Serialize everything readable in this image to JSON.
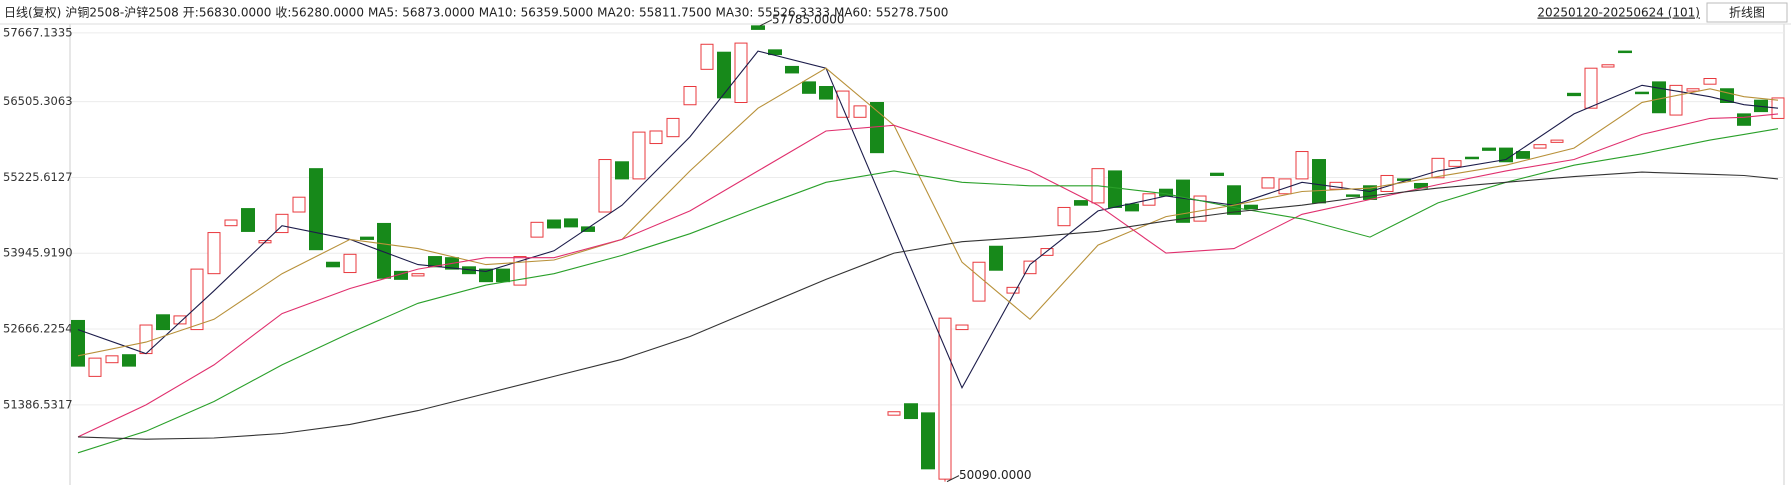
{
  "chart_data": {
    "type": "candlestick",
    "title": "日线(复权)",
    "subtitle": "沪铜2508-沪锌2508",
    "header_items": [
      {
        "label": "开:",
        "text": "56830.0000",
        "color": "#1a9fe0"
      },
      {
        "label": "收:",
        "text": "56280.0000",
        "color": "#1a9fe0"
      }
    ],
    "range": "20250120-20250624 (101)",
    "button": "折线图",
    "up_color": "#e8383d",
    "down_color": "#17891a",
    "ylim": [
      50050,
      57850
    ],
    "yticks": [
      {
        "value": 57667.1335,
        "label": "57667.1335"
      },
      {
        "value": 56505.3063,
        "label": "56505.3063"
      },
      {
        "value": 55225.6127,
        "label": "55225.6127"
      },
      {
        "value": 53945.919,
        "label": "53945.9190"
      },
      {
        "value": 52666.2254,
        "label": "52666.2254"
      },
      {
        "value": 51386.5317,
        "label": "51386.5317"
      }
    ],
    "grid": true,
    "open": [
      52811,
      51867,
      52098,
      52233,
      52252,
      52907,
      52753,
      52657,
      53601,
      54411,
      54700,
      54122,
      54295,
      54642,
      55374,
      53794,
      53620,
      54218,
      54449,
      53640,
      53563,
      53890,
      53871,
      53717,
      53678,
      53678,
      53408,
      54218,
      54507,
      54526,
      54391,
      54642,
      55490,
      55201,
      55798,
      55914,
      56453,
      57051,
      57340,
      56491,
      57785,
      57380,
      57100,
      56839,
      56761,
      56241,
      56241,
      56491,
      51212,
      51405,
      51251,
      50132,
      52657,
      53138,
      54064,
      53273,
      53601,
      53910,
      54411,
      54835,
      54796,
      55336,
      54777,
      54757,
      55027,
      55181,
      54488,
      55297,
      55085,
      54757,
      55047,
      54950,
      55201,
      55528,
      55027,
      54931,
      55085,
      54989,
      55201,
      55124,
      55220,
      55413,
      55567,
      55721,
      55721,
      55663,
      55721,
      55818,
      56646,
      56395,
      57090,
      57359,
      56665,
      56839,
      56279,
      56684,
      56800,
      56723,
      56299,
      56530,
      56222
    ],
    "close": [
      52040,
      52175,
      52214,
      52040,
      52734,
      52657,
      52888,
      53678,
      54295,
      54507,
      54314,
      54160,
      54603,
      54892,
      54006,
      53717,
      53928,
      54179,
      53524,
      53505,
      53601,
      53717,
      53678,
      53601,
      53466,
      53466,
      53890,
      54468,
      54372,
      54391,
      54314,
      55528,
      55201,
      55991,
      56010,
      56222,
      56761,
      57474,
      56569,
      57494,
      57725,
      57300,
      56990,
      56646,
      56549,
      56684,
      56434,
      55644,
      51270,
      51155,
      50306,
      52850,
      52734,
      53794,
      53659,
      53370,
      53813,
      54025,
      54719,
      54757,
      55374,
      54719,
      54661,
      54950,
      54912,
      54468,
      54912,
      55259,
      54603,
      54700,
      55220,
      55201,
      55663,
      54796,
      55143,
      54912,
      54854,
      55259,
      55182,
      55047,
      55548,
      55509,
      55548,
      55683,
      55490,
      55548,
      55779,
      55856,
      56607,
      57070,
      57128,
      57340,
      56646,
      56318,
      56780,
      56723,
      56896,
      56491,
      56106,
      56337,
      56568
    ],
    "annotations": [
      {
        "index": 40,
        "value": 57785,
        "label": "57785.0000"
      },
      {
        "index": 51,
        "value": 50090,
        "label": "50090.0000"
      }
    ],
    "ma_x": [
      0,
      4,
      8,
      12,
      16,
      20,
      24,
      28,
      32,
      36,
      40,
      44,
      48,
      52,
      56,
      60,
      64,
      68,
      72,
      76,
      80,
      84,
      88,
      92,
      96,
      98,
      100
    ],
    "series": [
      {
        "name": "MA5:",
        "last_label": "56873.0000",
        "color": "#1c1c4a",
        "values": [
          52657,
          52252,
          53312,
          54411,
          54179,
          53755,
          53640,
          53987,
          54757,
          55914,
          57359,
          57070,
          54372,
          51674,
          53755,
          54661,
          54912,
          54757,
          55143,
          54989,
          55336,
          55528,
          56299,
          56781,
          56588,
          56453,
          56395
        ]
      },
      {
        "name": "MA10:",
        "last_label": "56359.5000",
        "color": "#b8913a",
        "values": [
          52214,
          52445,
          52830,
          53601,
          54179,
          54025,
          53755,
          53832,
          54179,
          55336,
          56395,
          57070,
          56106,
          53794,
          52830,
          54083,
          54565,
          54757,
          54989,
          55046,
          55240,
          55432,
          55721,
          56492,
          56723,
          56588,
          56530
        ]
      },
      {
        "name": "MA20:",
        "last_label": "55811.7500",
        "color": "#e0306e",
        "values": [
          50846,
          51385,
          52060,
          52927,
          53351,
          53678,
          53871,
          53871,
          54179,
          54661,
          55336,
          56010,
          56106,
          55721,
          55336,
          54757,
          53948,
          54025,
          54603,
          54854,
          55104,
          55336,
          55528,
          55952,
          56222,
          56241,
          56299
        ]
      },
      {
        "name": "MA30:",
        "last_label": "55526.3333",
        "color": "#2aa02a",
        "values": [
          50576,
          50942,
          51443,
          52060,
          52599,
          53100,
          53408,
          53601,
          53910,
          54276,
          54719,
          55143,
          55336,
          55143,
          55085,
          55085,
          54950,
          54719,
          54526,
          54218,
          54796,
          55143,
          55432,
          55625,
          55856,
          55952,
          56048
        ]
      },
      {
        "name": "MA60:",
        "last_label": "55278.7500",
        "color": "#333333",
        "values": [
          50846,
          50807,
          50826,
          50903,
          51057,
          51289,
          51578,
          51867,
          52156,
          52541,
          53023,
          53504,
          53948,
          54141,
          54218,
          54314,
          54488,
          54642,
          54757,
          54912,
          55046,
          55143,
          55240,
          55316,
          55278,
          55259,
          55201
        ]
      }
    ]
  }
}
